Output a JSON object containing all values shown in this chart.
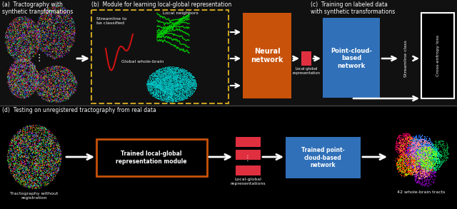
{
  "bg_top": "#111111",
  "bg_bottom": "#000000",
  "divider_color": "#555555",
  "orange_box": "#c8520a",
  "blue_box": "#3070b8",
  "red_rect": "#e03040",
  "dashed_box_color": "#c8a020",
  "text_color": "#ffffff",
  "label_a": "(a)  Tractography with\nsynthetic transformations",
  "label_b": "(b)  Module for learning local-global representation",
  "label_c": "(c)  Training on labeled data\nwith synthetic transformations",
  "label_d": "(d)  Testing on unregistered tractography from real data",
  "neural_network_text": "Neural\nnetwork",
  "local_global_text": "Local-global\nrepresentation",
  "point_cloud_text": "Point-cloud-\nbased\nnetwork",
  "streamline_class_text": "Streamline class",
  "cross_entropy_text": "Cross-entropy loss",
  "trained_local_global_text": "Trained local-global\nrepresentation module",
  "trained_point_cloud_text": "Trained point-\ncloud-based\nnetwork",
  "local_global_repr_text": "Local-global\nrepresentations",
  "tractography_without_text": "Tractography without\nregistration",
  "whole_brain_tracts_text": "42 whole-brain tracts",
  "local_neighbors_text": "Local neighbors",
  "streamline_classify_text": "Streamline to\nbe classified",
  "global_whole_brain_text": "Global whole-brain"
}
